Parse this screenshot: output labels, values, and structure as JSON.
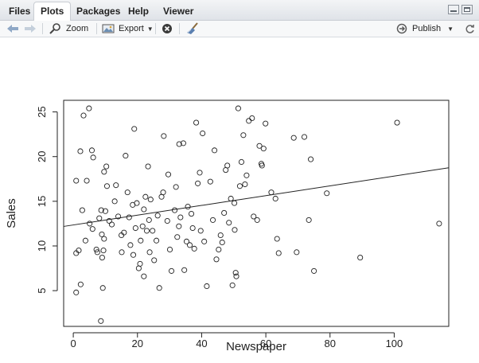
{
  "tabs": [
    {
      "label": "Files",
      "active": false
    },
    {
      "label": "Plots",
      "active": true
    },
    {
      "label": "Packages",
      "active": false
    },
    {
      "label": "Help",
      "active": false
    },
    {
      "label": "Viewer",
      "active": false
    }
  ],
  "toolbar": {
    "zoom_label": "Zoom",
    "export_label": "Export",
    "publish_label": "Publish",
    "icons": [
      "back-arrow-icon",
      "forward-arrow-icon",
      "zoom-magnifier-icon",
      "export-image-icon",
      "remove-plot-icon",
      "broom-clear-icon",
      "publish-icon"
    ]
  },
  "colors": {
    "points": "#222222",
    "line": "#222222",
    "tab_active": "#ffffff"
  },
  "chart_data": {
    "type": "scatter",
    "title": "",
    "xlabel": "Newspaper",
    "ylabel": "Sales",
    "xlim": [
      -3,
      117
    ],
    "ylim": [
      1.0,
      26.3
    ],
    "xticks": [
      0,
      20,
      40,
      60,
      80,
      100
    ],
    "yticks": [
      5,
      10,
      15,
      20,
      25
    ],
    "grid": false,
    "regression_line": {
      "intercept": 12.35,
      "slope": 0.0547
    },
    "points": [
      [
        0.9,
        17.3
      ],
      [
        2.2,
        20.6
      ],
      [
        3.2,
        24.6
      ],
      [
        4.9,
        25.4
      ],
      [
        6.2,
        19.9
      ],
      [
        5.8,
        20.7
      ],
      [
        4.2,
        17.3
      ],
      [
        2.8,
        14.0
      ],
      [
        1.7,
        9.5
      ],
      [
        0.9,
        9.2
      ],
      [
        0.9,
        4.8
      ],
      [
        2.3,
        5.7
      ],
      [
        3.8,
        10.6
      ],
      [
        5.1,
        12.5
      ],
      [
        6.0,
        11.9
      ],
      [
        7.2,
        9.6
      ],
      [
        7.5,
        9.3
      ],
      [
        8.1,
        13.1
      ],
      [
        8.7,
        14.0
      ],
      [
        8.9,
        11.3
      ],
      [
        9.0,
        8.7
      ],
      [
        9.4,
        9.5
      ],
      [
        9.6,
        10.8
      ],
      [
        9.2,
        5.3
      ],
      [
        8.6,
        1.6
      ],
      [
        9.6,
        18.3
      ],
      [
        10.3,
        18.9
      ],
      [
        10.5,
        16.7
      ],
      [
        10.0,
        13.9
      ],
      [
        11.2,
        12.8
      ],
      [
        12.0,
        12.4
      ],
      [
        12.9,
        15.0
      ],
      [
        13.3,
        16.8
      ],
      [
        14.0,
        13.3
      ],
      [
        15.0,
        11.2
      ],
      [
        15.1,
        9.3
      ],
      [
        15.8,
        11.5
      ],
      [
        16.3,
        20.1
      ],
      [
        16.9,
        16.0
      ],
      [
        17.4,
        13.2
      ],
      [
        17.8,
        10.1
      ],
      [
        18.5,
        14.6
      ],
      [
        18.7,
        9.0
      ],
      [
        19.0,
        23.1
      ],
      [
        19.4,
        12.0
      ],
      [
        19.8,
        14.8
      ],
      [
        20.4,
        7.5
      ],
      [
        20.8,
        8.0
      ],
      [
        21.0,
        10.6
      ],
      [
        21.6,
        12.2
      ],
      [
        22.0,
        14.1
      ],
      [
        22.5,
        15.5
      ],
      [
        22.0,
        6.6
      ],
      [
        22.9,
        11.7
      ],
      [
        23.3,
        18.9
      ],
      [
        23.6,
        12.9
      ],
      [
        23.8,
        9.3
      ],
      [
        24.1,
        15.2
      ],
      [
        24.7,
        11.7
      ],
      [
        25.2,
        8.4
      ],
      [
        25.9,
        10.6
      ],
      [
        26.3,
        13.4
      ],
      [
        26.8,
        5.3
      ],
      [
        27.5,
        15.5
      ],
      [
        28.2,
        22.3
      ],
      [
        28.0,
        16.0
      ],
      [
        29.3,
        12.8
      ],
      [
        29.6,
        18.0
      ],
      [
        30.1,
        9.6
      ],
      [
        30.6,
        7.2
      ],
      [
        31.6,
        14.0
      ],
      [
        32.0,
        16.6
      ],
      [
        32.4,
        11.0
      ],
      [
        32.9,
        12.2
      ],
      [
        33.4,
        13.2
      ],
      [
        33.0,
        21.4
      ],
      [
        34.3,
        21.5
      ],
      [
        34.6,
        7.3
      ],
      [
        35.3,
        10.5
      ],
      [
        35.7,
        14.4
      ],
      [
        36.3,
        10.1
      ],
      [
        36.8,
        13.6
      ],
      [
        37.2,
        12.0
      ],
      [
        37.7,
        9.7
      ],
      [
        38.3,
        23.8
      ],
      [
        38.8,
        17.0
      ],
      [
        39.4,
        18.2
      ],
      [
        39.7,
        11.7
      ],
      [
        40.3,
        22.6
      ],
      [
        40.8,
        10.5
      ],
      [
        41.6,
        5.5
      ],
      [
        42.7,
        17.2
      ],
      [
        43.5,
        12.9
      ],
      [
        44.0,
        20.7
      ],
      [
        44.6,
        8.5
      ],
      [
        45.3,
        9.6
      ],
      [
        45.9,
        11.2
      ],
      [
        46.4,
        10.4
      ],
      [
        47.0,
        13.7
      ],
      [
        47.5,
        18.5
      ],
      [
        48.0,
        19.0
      ],
      [
        48.5,
        12.6
      ],
      [
        49.1,
        15.3
      ],
      [
        49.6,
        5.6
      ],
      [
        50.2,
        14.8
      ],
      [
        50.3,
        11.8
      ],
      [
        50.6,
        7.0
      ],
      [
        50.8,
        6.6
      ],
      [
        51.4,
        25.4
      ],
      [
        51.9,
        16.7
      ],
      [
        52.4,
        19.4
      ],
      [
        53.0,
        22.4
      ],
      [
        53.5,
        16.9
      ],
      [
        54.0,
        17.9
      ],
      [
        54.7,
        24.0
      ],
      [
        55.7,
        24.3
      ],
      [
        56.2,
        13.3
      ],
      [
        57.3,
        12.9
      ],
      [
        58.0,
        21.2
      ],
      [
        58.6,
        19.2
      ],
      [
        58.8,
        19.0
      ],
      [
        59.3,
        20.9
      ],
      [
        59.9,
        23.7
      ],
      [
        61.7,
        16.0
      ],
      [
        63.0,
        15.3
      ],
      [
        63.5,
        10.8
      ],
      [
        64.0,
        9.2
      ],
      [
        68.7,
        22.1
      ],
      [
        69.6,
        9.3
      ],
      [
        72.0,
        22.2
      ],
      [
        73.4,
        12.9
      ],
      [
        74.0,
        19.7
      ],
      [
        75.0,
        7.2
      ],
      [
        79.0,
        15.9
      ],
      [
        89.4,
        8.7
      ],
      [
        100.9,
        23.8
      ],
      [
        114.0,
        12.5
      ]
    ]
  }
}
